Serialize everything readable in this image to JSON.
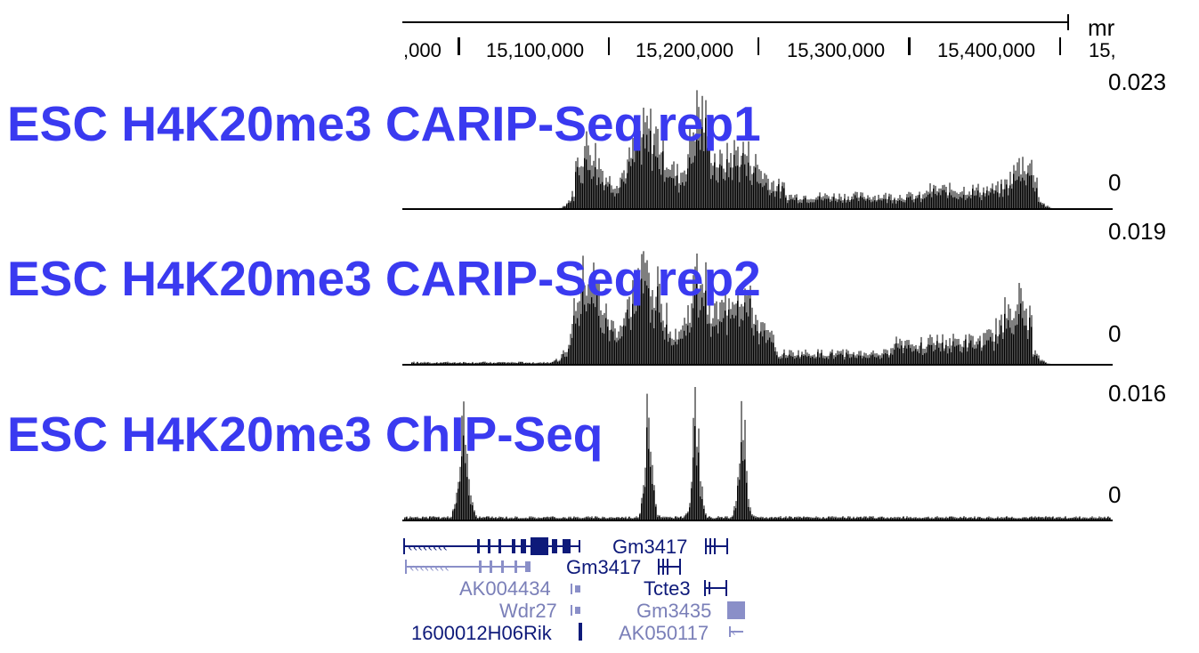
{
  "ruler": {
    "unit_label": "mr",
    "ticks": [
      {
        "label": ",000"
      },
      {
        "label": "15,100,000"
      },
      {
        "label": "15,200,000"
      },
      {
        "label": "15,300,000"
      },
      {
        "label": "15,400,000"
      },
      {
        "label": "15,"
      }
    ]
  },
  "tracks": [
    {
      "title": "ESC H4K20me3 CARIP-Seq rep1",
      "max_label": "0.023",
      "min_label": "0",
      "max_value": 0.023
    },
    {
      "title": "ESC H4K20me3 CARIP-Seq rep2",
      "max_label": "0.019",
      "min_label": "0",
      "max_value": 0.019
    },
    {
      "title": "ESC H4K20me3 ChIP-Seq",
      "max_label": "0.016",
      "min_label": "0",
      "max_value": 0.016
    }
  ],
  "genes": [
    {
      "name": "Gm3417",
      "color": "#0e1a7a"
    },
    {
      "name": "Gm3417",
      "color": "#0e1a7a"
    },
    {
      "name": "AK004434",
      "color": "#7a7fb8"
    },
    {
      "name": "Tcte3",
      "color": "#0e1a7a"
    },
    {
      "name": "Wdr27",
      "color": "#7a7fb8"
    },
    {
      "name": "Gm3435",
      "color": "#7a7fb8"
    },
    {
      "name": "1600012H06Rik",
      "color": "#0e1a7a"
    },
    {
      "name": "AK050117",
      "color": "#7a7fb8"
    }
  ],
  "colors": {
    "track_title": "#3a3af0",
    "signal_dark": "#000000",
    "signal_light": "#7f7f7f",
    "gene_dark": "#0e1a7a",
    "gene_light": "#8a8fc8"
  }
}
